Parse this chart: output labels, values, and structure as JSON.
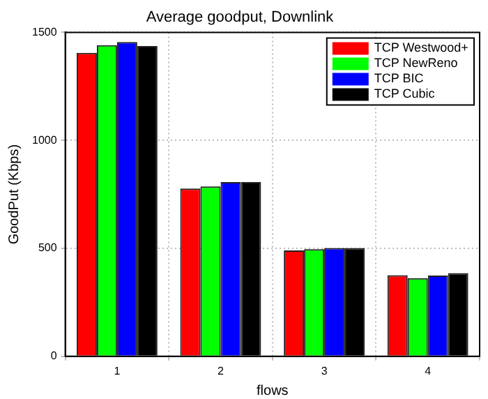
{
  "chart_data": {
    "type": "bar",
    "title": "Average goodput, Downlink",
    "xlabel": "flows",
    "ylabel": "GoodPut (Kbps)",
    "categories": [
      "1",
      "2",
      "3",
      "4"
    ],
    "series": [
      {
        "name": "TCP Westwood+",
        "color": "#ff0000",
        "values": [
          1405,
          777,
          490,
          376
        ]
      },
      {
        "name": "TCP NewReno",
        "color": "#00ff00",
        "values": [
          1441,
          787,
          496,
          362
        ]
      },
      {
        "name": "TCP BIC",
        "color": "#0000ff",
        "values": [
          1455,
          807,
          502,
          374
        ]
      },
      {
        "name": "TCP Cubic",
        "color": "#000000",
        "values": [
          1437,
          807,
          502,
          385
        ]
      }
    ],
    "ylim": [
      0,
      1500
    ],
    "yticks": [
      0,
      500,
      1000,
      1500
    ],
    "grid": true,
    "legend": "top right"
  }
}
